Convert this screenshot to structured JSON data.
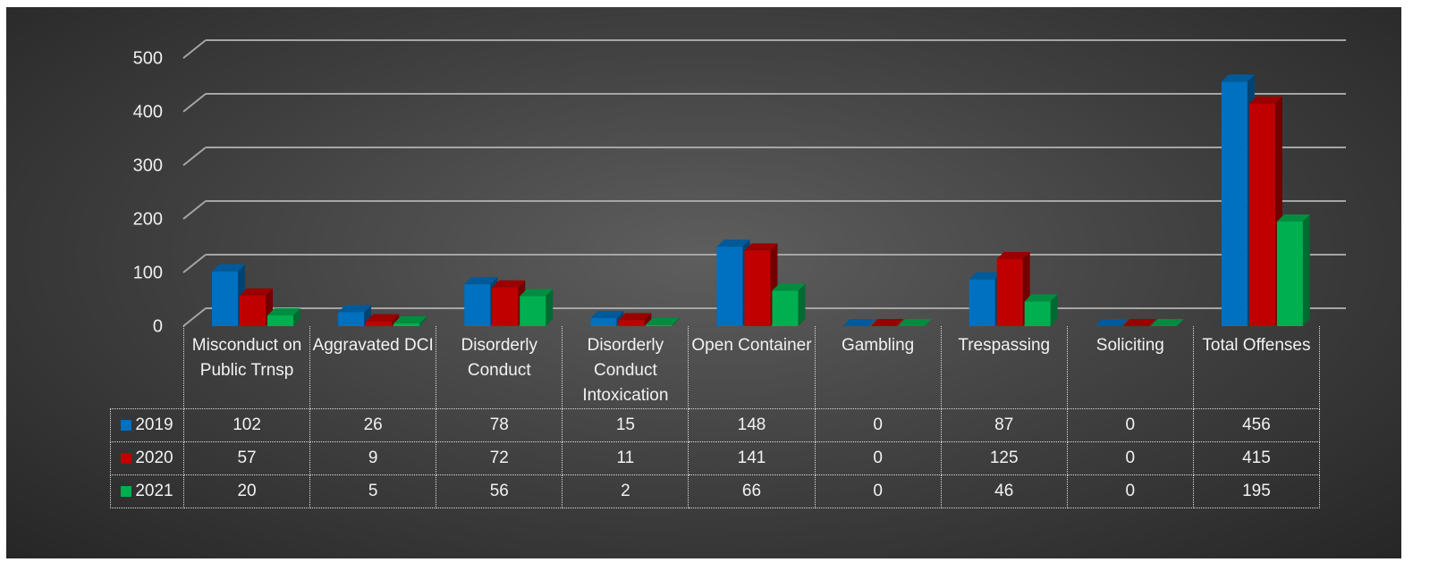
{
  "chart_data": {
    "type": "bar3d",
    "categories": [
      "Misconduct on Public Trnsp",
      "Aggravated DCI",
      "Disorderly Conduct",
      "Disorderly Conduct Intoxication",
      "Open Container",
      "Gambling",
      "Trespassing",
      "Soliciting",
      "Total Offenses"
    ],
    "series": [
      {
        "name": "2019",
        "color": "#0070c0",
        "values": [
          102,
          26,
          78,
          15,
          148,
          0,
          87,
          0,
          456
        ]
      },
      {
        "name": "2020",
        "color": "#c00000",
        "values": [
          57,
          9,
          72,
          11,
          141,
          0,
          125,
          0,
          415
        ]
      },
      {
        "name": "2021",
        "color": "#00b050",
        "values": [
          20,
          5,
          56,
          2,
          66,
          0,
          46,
          0,
          195
        ]
      }
    ],
    "ylim": [
      0,
      500
    ],
    "yticks": [
      0,
      100,
      200,
      300,
      400,
      500
    ],
    "grid": true,
    "data_table": true
  }
}
